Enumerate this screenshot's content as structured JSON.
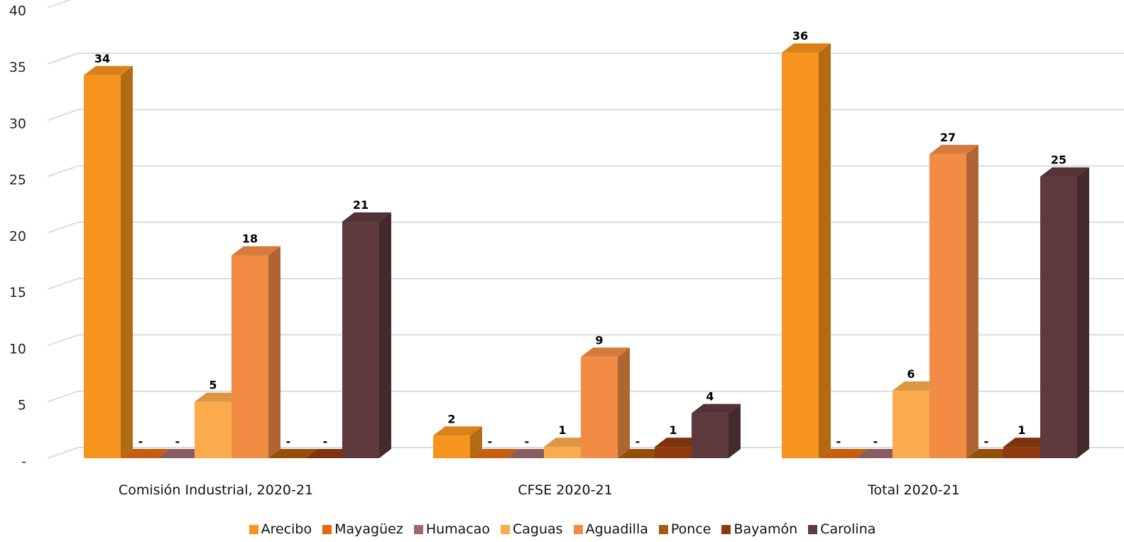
{
  "chart_data": {
    "type": "bar",
    "categories": [
      "Comisión Industrial, 2020-21",
      "CFSE 2020-21",
      "Total 2020-21"
    ],
    "series": [
      {
        "name": "Arecibo",
        "color": "#f7941d",
        "values": [
          34,
          2,
          36
        ]
      },
      {
        "name": "Mayagüez",
        "color": "#e06b10",
        "values": [
          0,
          0,
          0
        ]
      },
      {
        "name": "Humacao",
        "color": "#9c6a6c",
        "values": [
          0,
          0,
          0
        ]
      },
      {
        "name": "Caguas",
        "color": "#fbab4c",
        "values": [
          5,
          1,
          6
        ]
      },
      {
        "name": "Aguadilla",
        "color": "#f28c44",
        "values": [
          18,
          9,
          27
        ]
      },
      {
        "name": "Ponce",
        "color": "#a85a0c",
        "values": [
          0,
          0,
          0
        ]
      },
      {
        "name": "Bayamón",
        "color": "#8e3a0e",
        "values": [
          0,
          1,
          1
        ]
      },
      {
        "name": "Carolina",
        "color": "#5e3a3f",
        "values": [
          21,
          4,
          25
        ]
      }
    ],
    "data_labels": [
      [
        "34",
        "2",
        "36"
      ],
      [
        "-",
        "-",
        "-"
      ],
      [
        "-",
        "-",
        "-"
      ],
      [
        "5",
        "1",
        "6"
      ],
      [
        "18",
        "9",
        "27"
      ],
      [
        "-",
        "-",
        "-"
      ],
      [
        "-",
        "1",
        "1"
      ],
      [
        "21",
        "4",
        "25"
      ]
    ],
    "y_ticks": [
      "-",
      "5",
      "10",
      "15",
      "20",
      "25",
      "30",
      "35",
      "40"
    ],
    "ylim": [
      0,
      40
    ],
    "grid": true,
    "legend_position": "bottom",
    "style": "3d-column",
    "title": "",
    "xlabel": "",
    "ylabel": ""
  }
}
